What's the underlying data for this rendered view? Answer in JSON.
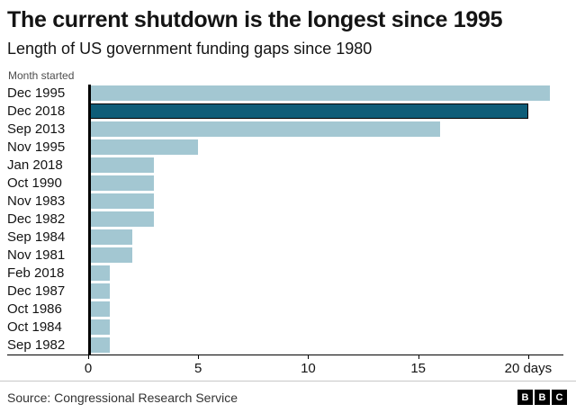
{
  "header": {
    "title": "The current shutdown is the longest since 1995",
    "subtitle": "Length of US government funding gaps since 1980"
  },
  "chart_data": {
    "type": "bar",
    "orientation": "horizontal",
    "axis_note": "Month started",
    "categories": [
      "Dec 1995",
      "Dec 2018",
      "Sep 2013",
      "Nov 1995",
      "Jan 2018",
      "Oct 1990",
      "Nov 1983",
      "Dec 1982",
      "Sep 1984",
      "Nov 1981",
      "Feb 2018",
      "Dec 1987",
      "Oct 1986",
      "Oct 1984",
      "Sep 1982"
    ],
    "values": [
      21,
      20,
      16,
      5,
      3,
      3,
      3,
      3,
      2,
      2,
      1,
      1,
      1,
      1,
      1
    ],
    "unit": "days",
    "highlight_category": "Dec 2018",
    "highlight_index": 1,
    "xlim": [
      0,
      21.6
    ],
    "xticks": [
      {
        "value": 0,
        "label": "0"
      },
      {
        "value": 5,
        "label": "5"
      },
      {
        "value": 10,
        "label": "10"
      },
      {
        "value": 15,
        "label": "15"
      },
      {
        "value": 20,
        "label": "20 days"
      }
    ],
    "colors": {
      "bar": "#a3c7d2",
      "highlight": "#0e5d78",
      "highlight_border": "#000000",
      "axis": "#000000"
    },
    "grid": false,
    "legend": "none"
  },
  "footer": {
    "source": "Source: Congressional Research Service",
    "logo_letters": [
      "B",
      "B",
      "C"
    ]
  }
}
